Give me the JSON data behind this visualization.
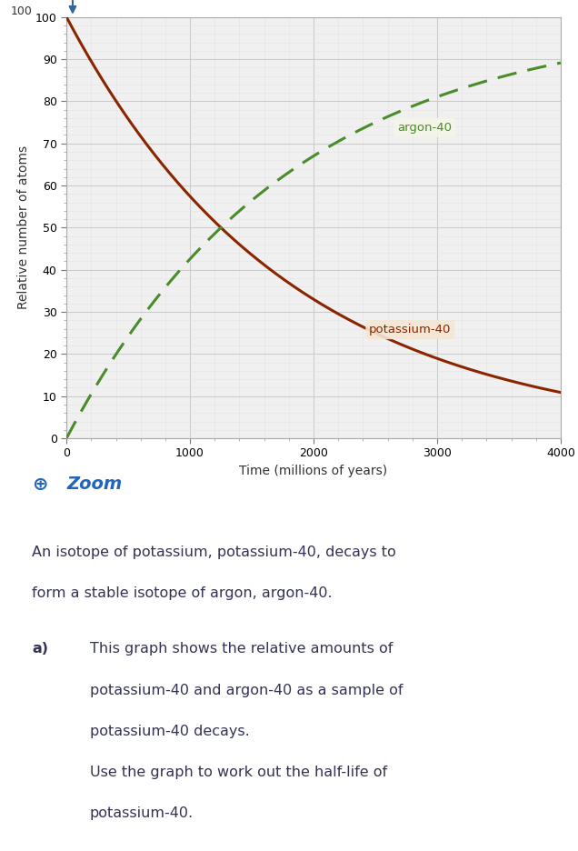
{
  "xlabel": "Time (millions of years)",
  "ylabel": "Relative number of atoms",
  "xlim": [
    0,
    4000
  ],
  "ylim": [
    0,
    100
  ],
  "xticks": [
    0,
    1000,
    2000,
    3000,
    4000
  ],
  "yticks": [
    0,
    10,
    20,
    30,
    40,
    50,
    60,
    70,
    80,
    90,
    100
  ],
  "half_life": 1250,
  "potassium_color": "#8B2500",
  "argon_color": "#4a8c2a",
  "label_potassium": "potassium-40",
  "label_argon": "argon-40",
  "label_potassium_color": "#8B2500",
  "label_argon_color": "#4a8c2a",
  "label_potassium_bg": "#f5e6d3",
  "label_argon_bg": "#f5f5e8",
  "grid_color": "#cccccc",
  "grid_minor_color": "#e5e5e5",
  "arrow_color": "#336699",
  "zoom_icon_color": "#2266bb",
  "zoom_text": "Zoom",
  "body_text_line1": "An isotope of potassium, potassium-40, decays to",
  "body_text_line2": "form a stable isotope of argon, argon-40.",
  "part_label": "a)",
  "part_text_line1": "This graph shows the relative amounts of",
  "part_text_line2": "potassium-40 and argon-40 as a sample of",
  "part_text_line3": "potassium-40 decays.",
  "part_text_line4": "Use the graph to work out the half-life of",
  "part_text_line5": "potassium-40.",
  "text_color": "#333355",
  "figure_bg": "#ffffff",
  "chart_bg": "#f0f0f0"
}
